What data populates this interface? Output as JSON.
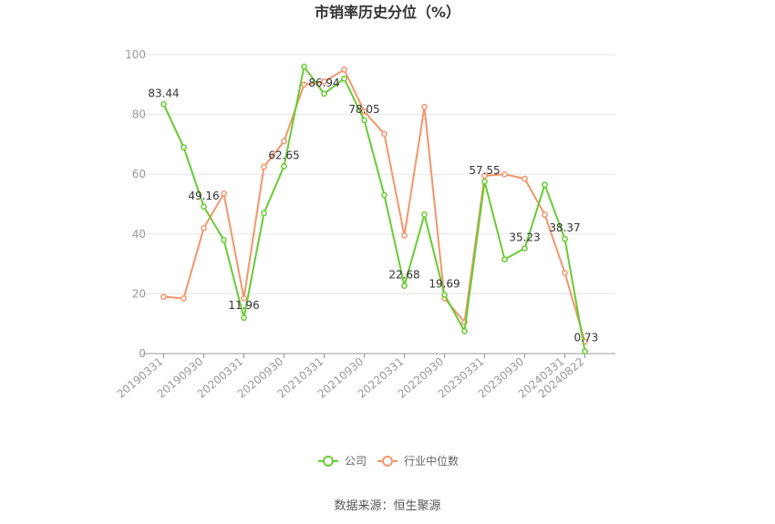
{
  "chart_data": {
    "type": "line",
    "title": "市销率历史分位（%）",
    "ylim": [
      0,
      100
    ],
    "yticks": [
      0,
      20,
      40,
      60,
      80,
      100
    ],
    "x": [
      "20190331",
      "20190630",
      "20190930",
      "20191231",
      "20200331",
      "20200630",
      "20200930",
      "20201231",
      "20210331",
      "20210630",
      "20210930",
      "20211231",
      "20220331",
      "20220630",
      "20220930",
      "20221231",
      "20230331",
      "20230630",
      "20230930",
      "20231231",
      "20240331",
      "20240822"
    ],
    "x_tick_labels": [
      "20190331",
      "20190930",
      "20200331",
      "20200930",
      "20210331",
      "20210930",
      "20220331",
      "20220930",
      "20230331",
      "20230930",
      "20240331",
      "20240822"
    ],
    "grid": true,
    "legend_position": "bottom",
    "series": [
      {
        "name": "公司",
        "color": "#66cc33",
        "values": [
          83.44,
          69,
          49.16,
          38,
          11.96,
          47,
          62.65,
          96,
          86.94,
          92,
          78.05,
          53,
          22.68,
          46.5,
          19.69,
          7.5,
          57.55,
          31.5,
          35.23,
          56.5,
          38.37,
          0.73
        ],
        "labeled_points": {
          "0": "83.44",
          "2": "49.16",
          "4": "11.96",
          "6": "62.65",
          "8": "86.94",
          "10": "78.05",
          "12": "22.68",
          "14": "19.69",
          "16": "57.55",
          "18": "35.23",
          "20": "38.37",
          "21": "0.73"
        }
      },
      {
        "name": "行业中位数",
        "color": "#f4956b",
        "values": [
          19,
          18.5,
          42,
          53.5,
          18.5,
          62.5,
          71,
          90,
          91,
          95,
          81,
          73.5,
          39.5,
          82.5,
          18.5,
          10.5,
          59.5,
          60,
          58.5,
          46.5,
          27,
          4
        ]
      }
    ]
  },
  "source": "数据来源：恒生聚源"
}
